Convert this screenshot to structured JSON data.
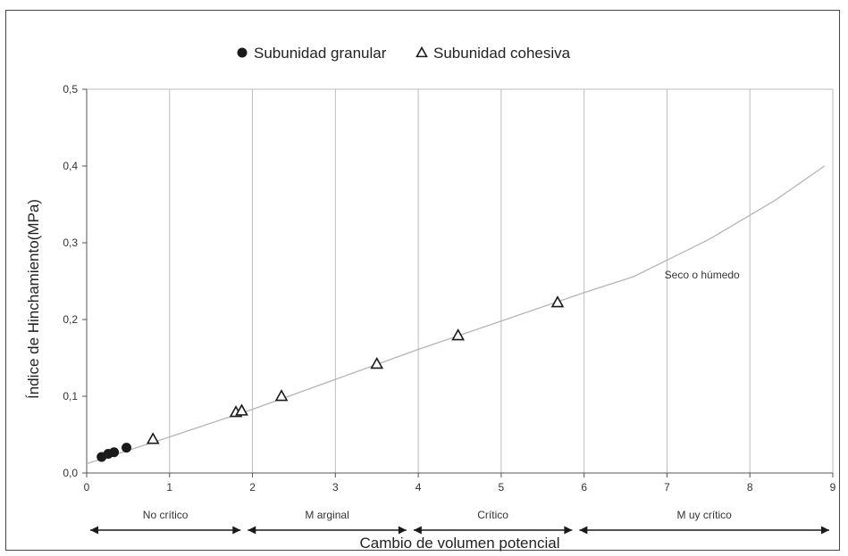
{
  "chart_data": {
    "type": "scatter",
    "title": "",
    "xlabel": "Cambio de volumen potencial",
    "ylabel": "Índice de Hinchamiento(MPa)",
    "xlim": [
      0,
      9
    ],
    "ylim": [
      0.0,
      0.5
    ],
    "x_ticks": [
      "0",
      "1",
      "2",
      "3",
      "4",
      "5",
      "6",
      "7",
      "8",
      "9"
    ],
    "y_ticks": [
      "0,0",
      "0,1",
      "0,2",
      "0,3",
      "0,4",
      "0,5"
    ],
    "grid": "vertical",
    "legend_position": "top-center",
    "series": [
      {
        "name": "Subunidad granular",
        "marker": "filled-circle",
        "points": [
          {
            "x": 0.18,
            "y": 0.021
          },
          {
            "x": 0.26,
            "y": 0.025
          },
          {
            "x": 0.33,
            "y": 0.027
          },
          {
            "x": 0.48,
            "y": 0.033
          }
        ]
      },
      {
        "name": "Subunidad cohesiva",
        "marker": "open-triangle",
        "points": [
          {
            "x": 0.8,
            "y": 0.043
          },
          {
            "x": 1.8,
            "y": 0.078
          },
          {
            "x": 1.87,
            "y": 0.08
          },
          {
            "x": 2.35,
            "y": 0.099
          },
          {
            "x": 3.5,
            "y": 0.141
          },
          {
            "x": 4.48,
            "y": 0.178
          },
          {
            "x": 5.68,
            "y": 0.221
          }
        ]
      }
    ],
    "curve": {
      "label": "Seco o húmedo",
      "points": [
        {
          "x": 0.0,
          "y": 0.012
        },
        {
          "x": 1.0,
          "y": 0.047
        },
        {
          "x": 2.0,
          "y": 0.083
        },
        {
          "x": 3.0,
          "y": 0.122
        },
        {
          "x": 4.0,
          "y": 0.161
        },
        {
          "x": 5.0,
          "y": 0.198
        },
        {
          "x": 6.0,
          "y": 0.235
        },
        {
          "x": 6.6,
          "y": 0.256
        },
        {
          "x": 7.5,
          "y": 0.304
        },
        {
          "x": 8.3,
          "y": 0.355
        },
        {
          "x": 8.9,
          "y": 0.4
        }
      ]
    },
    "zones": [
      {
        "label": "No crítico",
        "from": 0,
        "to": 1.9
      },
      {
        "label": "M arginal",
        "from": 1.9,
        "to": 3.9
      },
      {
        "label": "Crítico",
        "from": 3.9,
        "to": 5.9
      },
      {
        "label": "M uy crítico",
        "from": 5.9,
        "to": 9
      }
    ]
  },
  "colors": {
    "axis": "#555555",
    "grid": "#bdbdbd",
    "curve": "#b5b5b5",
    "marker": "#1a1a1a",
    "text": "#222222"
  }
}
